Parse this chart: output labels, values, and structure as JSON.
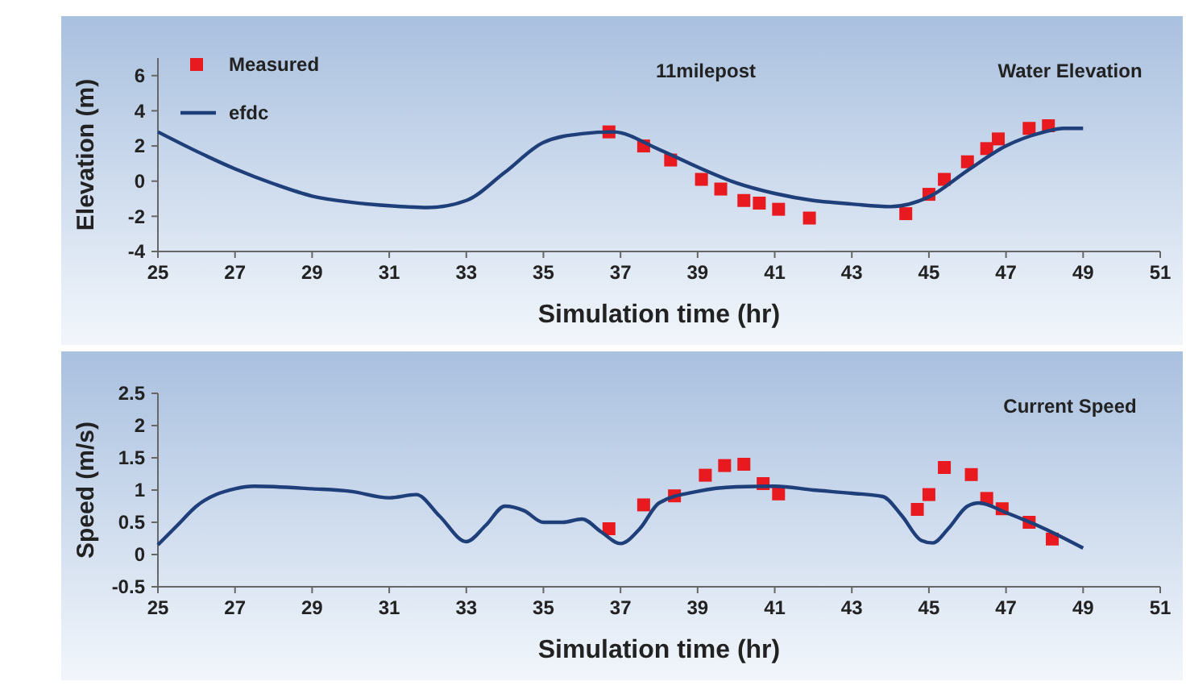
{
  "chart_data": [
    {
      "type": "line",
      "title": "Water Elevation",
      "annotations": [
        "11milepost"
      ],
      "xlabel": "Simulation time (hr)",
      "ylabel": "Elevation (m)",
      "xlim": [
        25,
        51
      ],
      "xticks": [
        25,
        27,
        29,
        31,
        33,
        35,
        37,
        39,
        41,
        43,
        45,
        47,
        49,
        51
      ],
      "ylim": [
        -4,
        7
      ],
      "yticks": [
        -4,
        -2,
        0,
        2,
        4,
        6
      ],
      "grid": false,
      "legend": "top left",
      "series": [
        {
          "name": "Measured",
          "type": "scatter",
          "marker": "square",
          "color": "#e8191f",
          "x": [
            36.7,
            37.6,
            38.3,
            39.1,
            39.6,
            40.2,
            40.6,
            41.1,
            41.9,
            44.4,
            45.0,
            45.4,
            46.0,
            46.5,
            46.8,
            47.6,
            48.1
          ],
          "values": [
            2.8,
            2.0,
            1.2,
            0.1,
            -0.45,
            -1.1,
            -1.25,
            -1.6,
            -2.1,
            -1.85,
            -0.75,
            0.1,
            1.1,
            1.85,
            2.4,
            3.0,
            3.15
          ]
        },
        {
          "name": "efdc",
          "marker": "none",
          "color": "#1f3f7a",
          "x": [
            25,
            26,
            27,
            28,
            29,
            30,
            31,
            32,
            33,
            34,
            35,
            36,
            36.8,
            38,
            39,
            40,
            41,
            42,
            43,
            44,
            45,
            46,
            47,
            48,
            48.5,
            49
          ],
          "values": [
            2.8,
            1.7,
            0.7,
            -0.15,
            -0.85,
            -1.2,
            -1.4,
            -1.5,
            -1.1,
            0.5,
            2.2,
            2.7,
            2.8,
            1.8,
            0.8,
            -0.1,
            -0.7,
            -1.1,
            -1.3,
            -1.45,
            -0.9,
            0.6,
            2.0,
            2.8,
            3.0,
            3.0
          ]
        }
      ]
    },
    {
      "type": "line",
      "title": "Current Speed",
      "xlabel": "Simulation time (hr)",
      "ylabel": "Speed (m/s)",
      "xlim": [
        25,
        51
      ],
      "xticks": [
        25,
        27,
        29,
        31,
        33,
        35,
        37,
        39,
        41,
        43,
        45,
        47,
        49,
        51
      ],
      "ylim": [
        -0.5,
        2.5
      ],
      "yticks": [
        -0.5,
        0,
        0.5,
        1,
        1.5,
        2,
        2.5
      ],
      "grid": false,
      "legend": false,
      "series": [
        {
          "type": "scatter",
          "marker": "square",
          "color": "#e8191f",
          "x": [
            36.7,
            37.6,
            38.4,
            39.2,
            39.7,
            40.2,
            40.7,
            41.1,
            44.7,
            45.0,
            45.4,
            46.1,
            46.5,
            46.9,
            47.6,
            48.2
          ],
          "values": [
            0.4,
            0.77,
            0.91,
            1.23,
            1.38,
            1.4,
            1.1,
            0.94,
            0.7,
            0.93,
            1.35,
            1.24,
            0.87,
            0.71,
            0.5,
            0.24
          ]
        },
        {
          "marker": "none",
          "color": "#1f3f7a",
          "x": [
            25,
            25.5,
            26,
            27,
            27.5,
            29,
            30,
            31,
            31.7,
            32.3,
            33,
            33.5,
            34,
            34.5,
            35,
            35.5,
            36,
            36.5,
            37,
            37.5,
            38,
            39,
            40,
            41,
            42,
            43,
            43.8,
            44.3,
            44.8,
            45.1,
            45.5,
            46,
            46.3,
            47,
            48,
            49
          ],
          "values": [
            0.15,
            0.45,
            0.75,
            1.02,
            1.06,
            1.02,
            0.98,
            0.88,
            0.93,
            0.6,
            0.2,
            0.45,
            0.75,
            0.68,
            0.5,
            0.5,
            0.55,
            0.35,
            0.17,
            0.4,
            0.8,
            0.98,
            1.05,
            1.06,
            1.0,
            0.95,
            0.9,
            0.6,
            0.22,
            0.18,
            0.4,
            0.75,
            0.8,
            0.65,
            0.4,
            0.1
          ]
        }
      ]
    }
  ]
}
